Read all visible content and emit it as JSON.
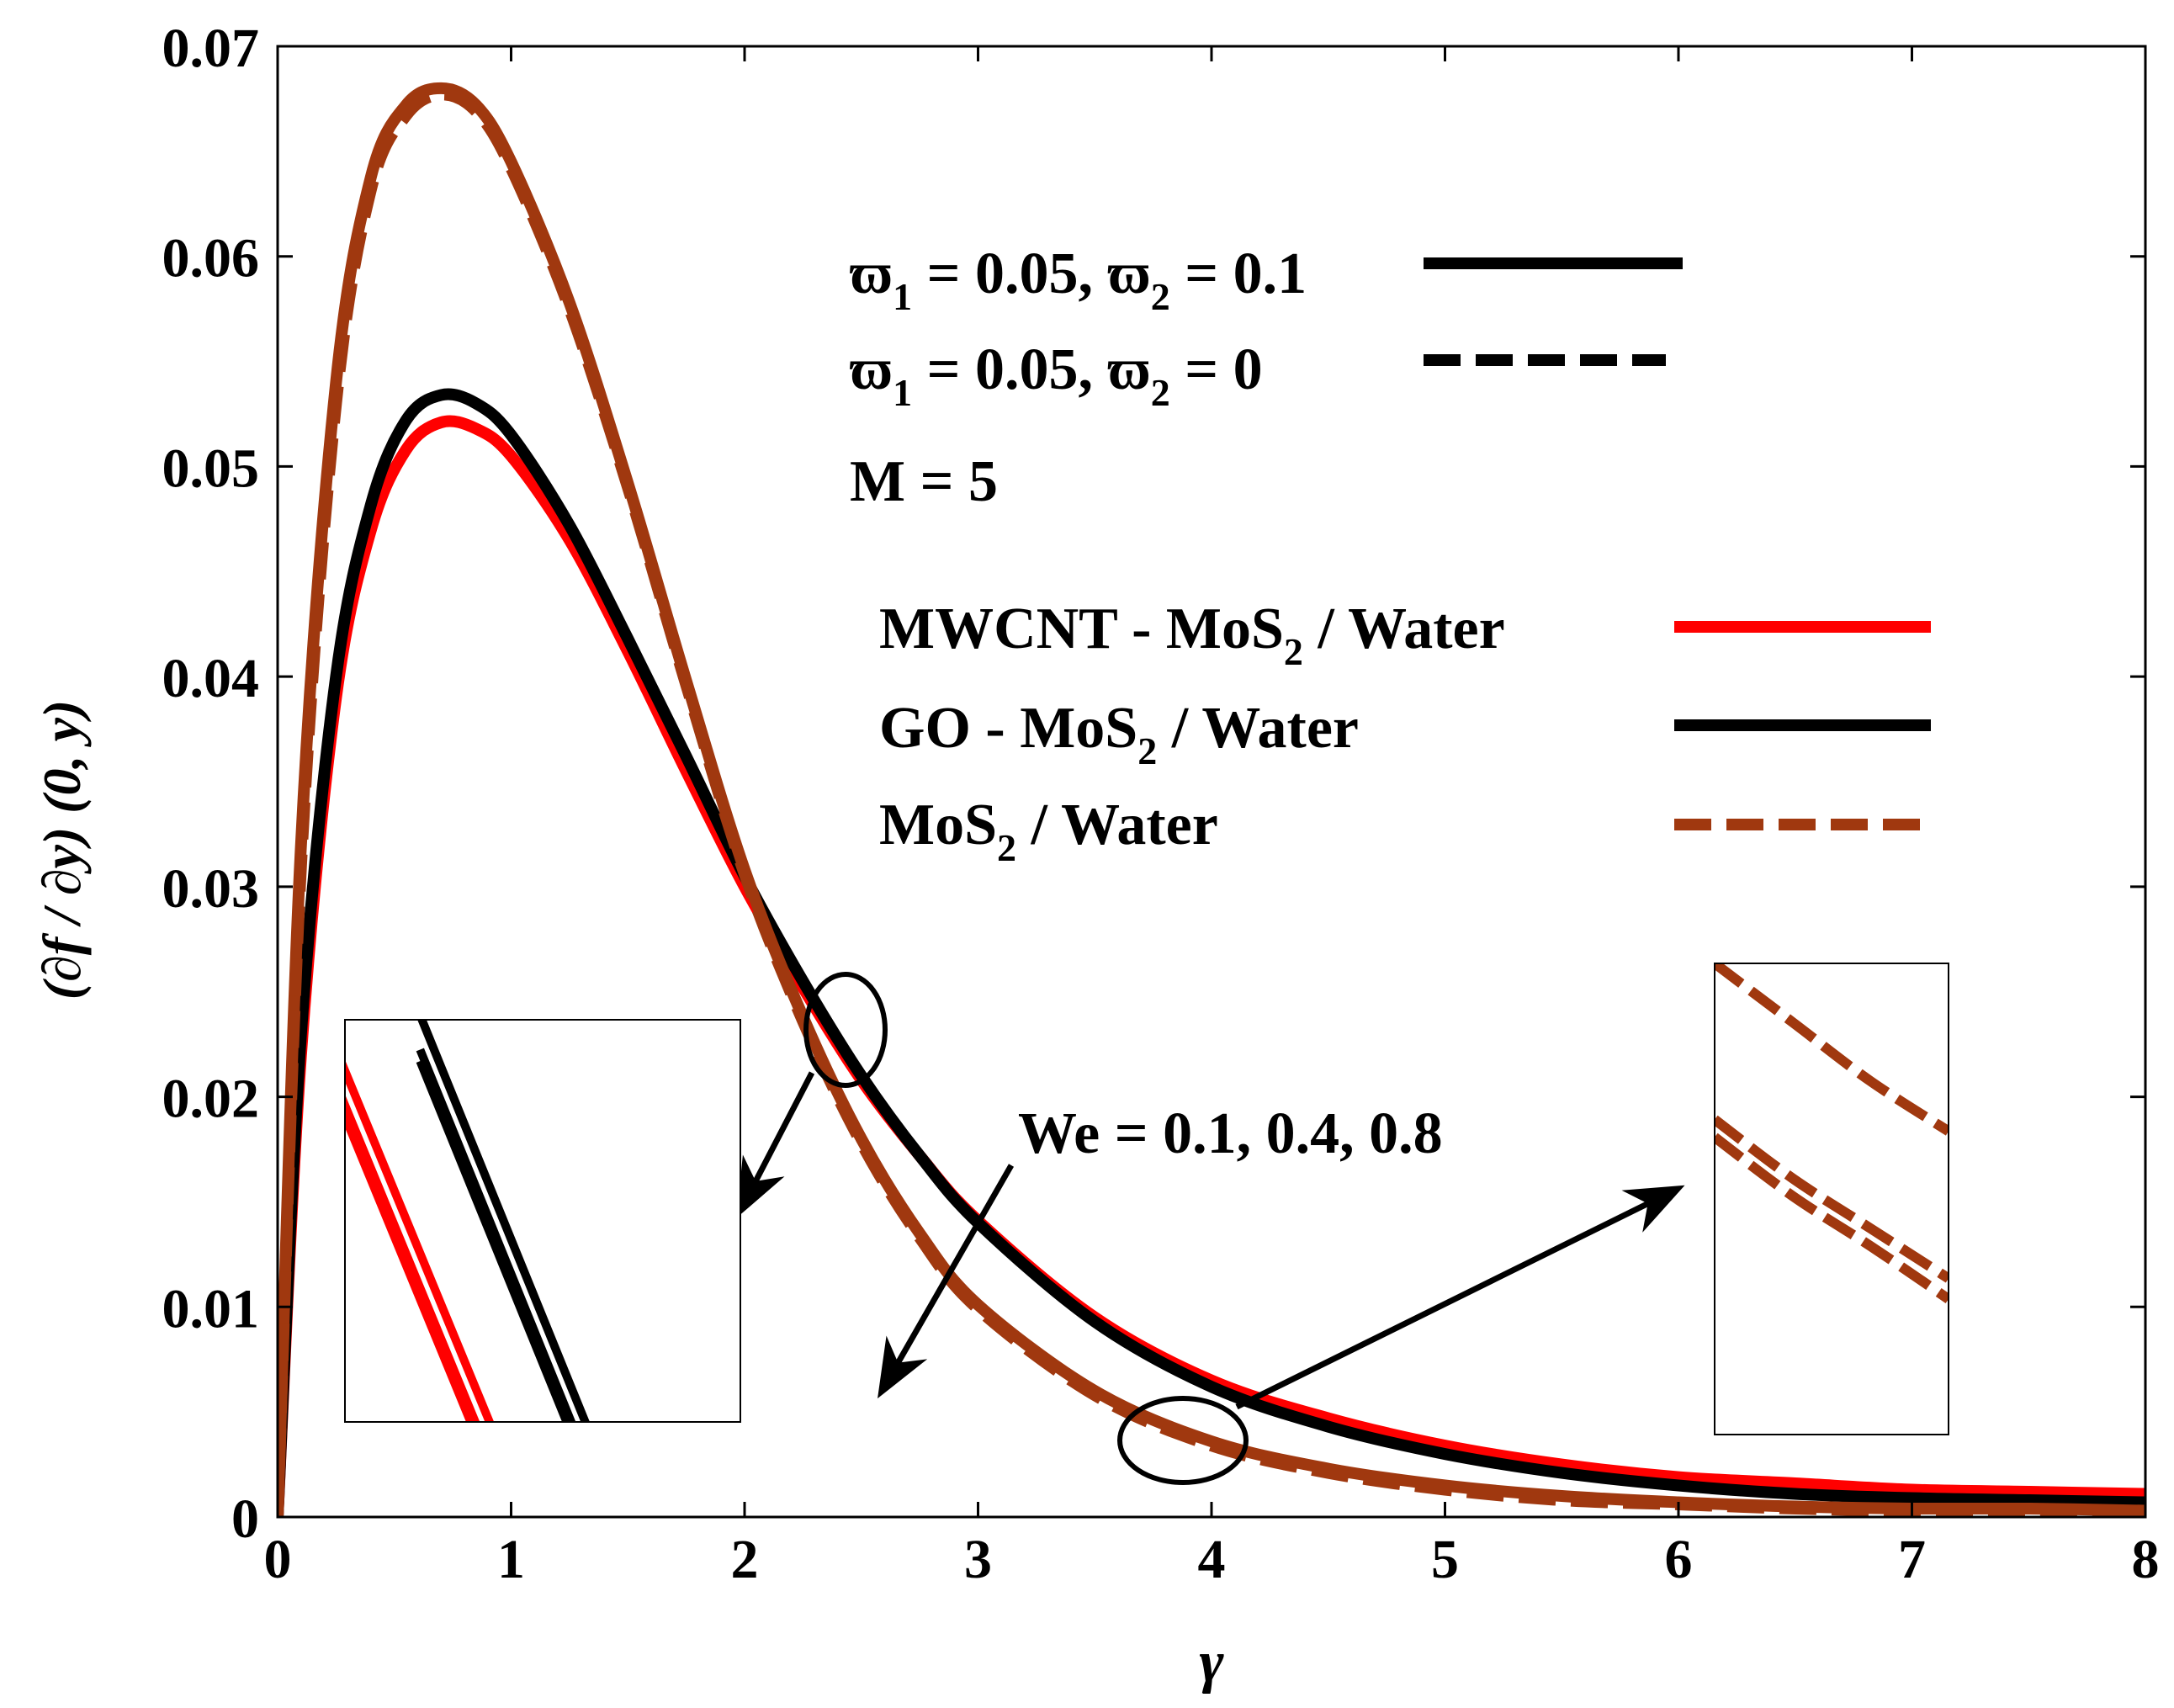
{
  "chart_data": {
    "type": "line",
    "title": "",
    "xlabel": "γ",
    "ylabel": "(∂f / ∂y) (0, y)",
    "xlim": [
      0,
      8
    ],
    "ylim": [
      0,
      0.07
    ],
    "grid": false,
    "x_ticks": [
      0,
      1,
      2,
      3,
      4,
      5,
      6,
      7,
      8
    ],
    "x_tick_labels": [
      "0",
      "1",
      "2",
      "3",
      "4",
      "5",
      "6",
      "7",
      "8"
    ],
    "y_ticks": [
      0,
      0.01,
      0.02,
      0.03,
      0.04,
      0.05,
      0.06,
      0.07
    ],
    "y_tick_labels": [
      "0",
      "0.01",
      "0.02",
      "0.03",
      "0.04",
      "0.05",
      "0.06",
      "0.07"
    ],
    "x": [
      0,
      0.1,
      0.25,
      0.4,
      0.55,
      0.7,
      0.85,
      1.0,
      1.25,
      1.5,
      1.75,
      2.0,
      2.25,
      2.5,
      2.75,
      3.0,
      3.5,
      4.0,
      4.5,
      5.0,
      5.5,
      6.0,
      6.5,
      7.0,
      7.5,
      8.0
    ],
    "series": [
      {
        "name": "MWCNT - MoS2 / Water, ϖ1 = 0.05, ϖ2 = 0.1",
        "color": "#ff0000",
        "dash": "solid",
        "values": [
          0,
          0.022,
          0.039,
          0.047,
          0.0508,
          0.0521,
          0.0518,
          0.0505,
          0.0465,
          0.0412,
          0.0355,
          0.03,
          0.0252,
          0.0208,
          0.0172,
          0.0141,
          0.0095,
          0.0065,
          0.0047,
          0.0034,
          0.0025,
          0.0019,
          0.0016,
          0.0013,
          0.0012,
          0.0011
        ]
      },
      {
        "name": "GO - MoS2 / Water, ϖ1 = 0.05, ϖ2 = 0.1",
        "color": "#000000",
        "dash": "solid",
        "values": [
          0,
          0.023,
          0.04,
          0.0482,
          0.0522,
          0.0534,
          0.053,
          0.0515,
          0.0472,
          0.0418,
          0.0362,
          0.0305,
          0.0255,
          0.021,
          0.0172,
          0.014,
          0.0093,
          0.0062,
          0.0043,
          0.003,
          0.0021,
          0.0015,
          0.0011,
          0.0009,
          0.0008,
          0.0007
        ]
      },
      {
        "name": "MoS2 / Water, ϖ1 = 0.05, ϖ2 = 0.1",
        "color": "#a0380f",
        "dash": "solid",
        "values": [
          0,
          0.032,
          0.054,
          0.0638,
          0.0672,
          0.068,
          0.0672,
          0.0645,
          0.0578,
          0.0492,
          0.0398,
          0.0308,
          0.0238,
          0.018,
          0.0135,
          0.0101,
          0.006,
          0.0036,
          0.0023,
          0.0015,
          0.001,
          0.0007,
          0.0005,
          0.0004,
          0.0004,
          0.0003
        ]
      },
      {
        "name": "MoS2 / Water, ϖ1 = 0.05, ϖ2 = 0",
        "color": "#a0380f",
        "dash": "dashed",
        "values": [
          0,
          0.031,
          0.053,
          0.0632,
          0.0667,
          0.0677,
          0.0669,
          0.0642,
          0.0575,
          0.049,
          0.0396,
          0.0306,
          0.0236,
          0.0178,
          0.0133,
          0.0099,
          0.0058,
          0.0034,
          0.0021,
          0.0013,
          0.0008,
          0.0006,
          0.0004,
          0.0003,
          0.0003,
          0.0002
        ]
      }
    ],
    "annotations": {
      "param_line_1": {
        "phi": "ϖ",
        "a": "1",
        "b": " = 0.05, ",
        "c": "2",
        "d": " = 0.1"
      },
      "param_line_2": {
        "phi": "ϖ",
        "a": "1",
        "b": " = 0.05, ",
        "c": "2",
        "d": " = 0"
      },
      "m_label": "M = 5",
      "we_label": "We = 0.1, 0.4, 0.8",
      "legend": [
        {
          "pre": "MWCNT - MoS",
          "sub": "2",
          "post": " / Water",
          "color": "#ff0000",
          "dash": "solid"
        },
        {
          "pre": "GO - MoS",
          "sub": "2",
          "post": " / Water",
          "color": "#000000",
          "dash": "solid"
        },
        {
          "pre": "MoS",
          "sub": "2",
          "post": " / Water",
          "color": "#a0380f",
          "dash": "dashed"
        }
      ]
    }
  }
}
